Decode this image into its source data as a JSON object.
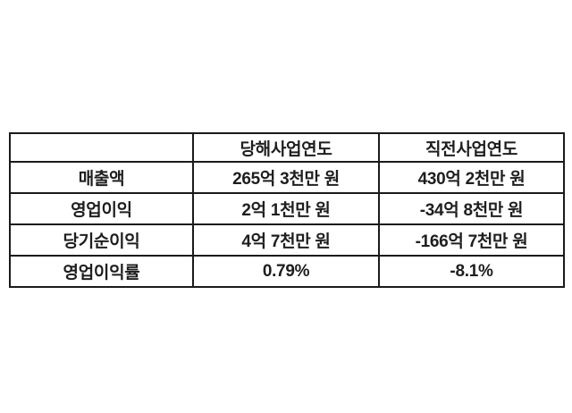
{
  "table": {
    "headers": {
      "corner": "",
      "current": "당해사업연도",
      "previous": "직전사업연도"
    },
    "rows": [
      {
        "label": "매출액",
        "current": "265억 3천만 원",
        "previous": "430억 2천만 원"
      },
      {
        "label": "영업이익",
        "current": "2억 1천만 원",
        "previous": "-34억 8천만 원"
      },
      {
        "label": "당기순이익",
        "current": "4억 7천만 원",
        "previous": "-166억 7천만 원"
      },
      {
        "label": "영업이익률",
        "current": "0.79%",
        "previous": "-8.1%"
      }
    ]
  },
  "colors": {
    "background": "#ffffff",
    "border": "#1a1a1a",
    "text": "#1e1e1e"
  },
  "chart_data": {
    "type": "table",
    "title": "",
    "columns": [
      "",
      "당해사업연도",
      "직전사업연도"
    ],
    "rows": [
      [
        "매출액",
        "265억 3천만 원",
        "430억 2천만 원"
      ],
      [
        "영업이익",
        "2억 1천만 원",
        "-34억 8천만 원"
      ],
      [
        "당기순이익",
        "4억 7천만 원",
        "-166억 7천만 원"
      ],
      [
        "영업이익률",
        "0.79%",
        "-8.1%"
      ]
    ],
    "notes": "Korean financial summary table: current fiscal year vs previous fiscal year; revenue, operating profit, net income, operating margin"
  }
}
